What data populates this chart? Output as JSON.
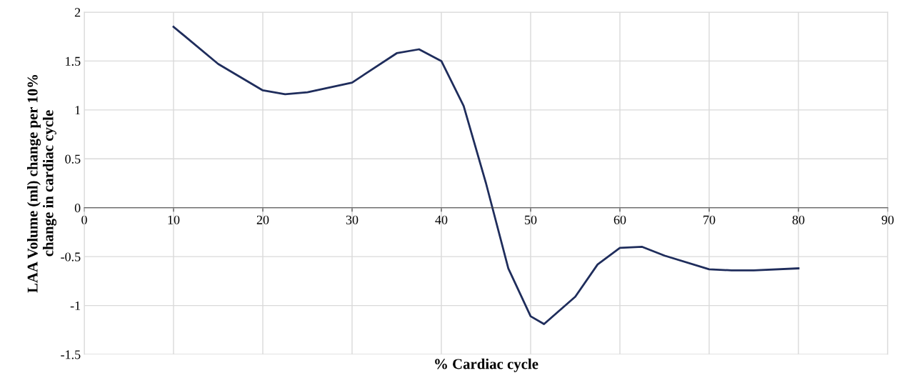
{
  "chart_data": {
    "type": "line",
    "xlabel": "% Cardiac cycle",
    "ylabel": "LAA Volume (ml) change per 10%\nchange in cardiac cycle",
    "x": [
      10,
      15,
      20,
      22.5,
      25,
      30,
      35,
      37.5,
      40,
      42.5,
      45,
      47.5,
      50,
      51.5,
      55,
      57.5,
      60,
      62.5,
      65,
      70,
      72.5,
      75,
      80
    ],
    "series": [
      {
        "color": "#1f2d5c",
        "values": [
          1.85,
          1.47,
          1.2,
          1.16,
          1.18,
          1.28,
          1.58,
          1.62,
          1.5,
          1.04,
          0.25,
          -0.62,
          -1.11,
          -1.19,
          -0.91,
          -0.58,
          -0.41,
          -0.4,
          -0.49,
          -0.63,
          -0.64,
          -0.64,
          -0.62
        ]
      }
    ],
    "xlim": [
      0,
      90
    ],
    "xticks": [
      0,
      10,
      20,
      30,
      40,
      50,
      60,
      70,
      80,
      90
    ],
    "ylim": [
      -1.5,
      2
    ],
    "yticks": [
      -1.5,
      -1,
      -0.5,
      0,
      0.5,
      1,
      1.5,
      2
    ],
    "grid": true,
    "legend": false,
    "marker": "none",
    "line_style": "solid"
  }
}
